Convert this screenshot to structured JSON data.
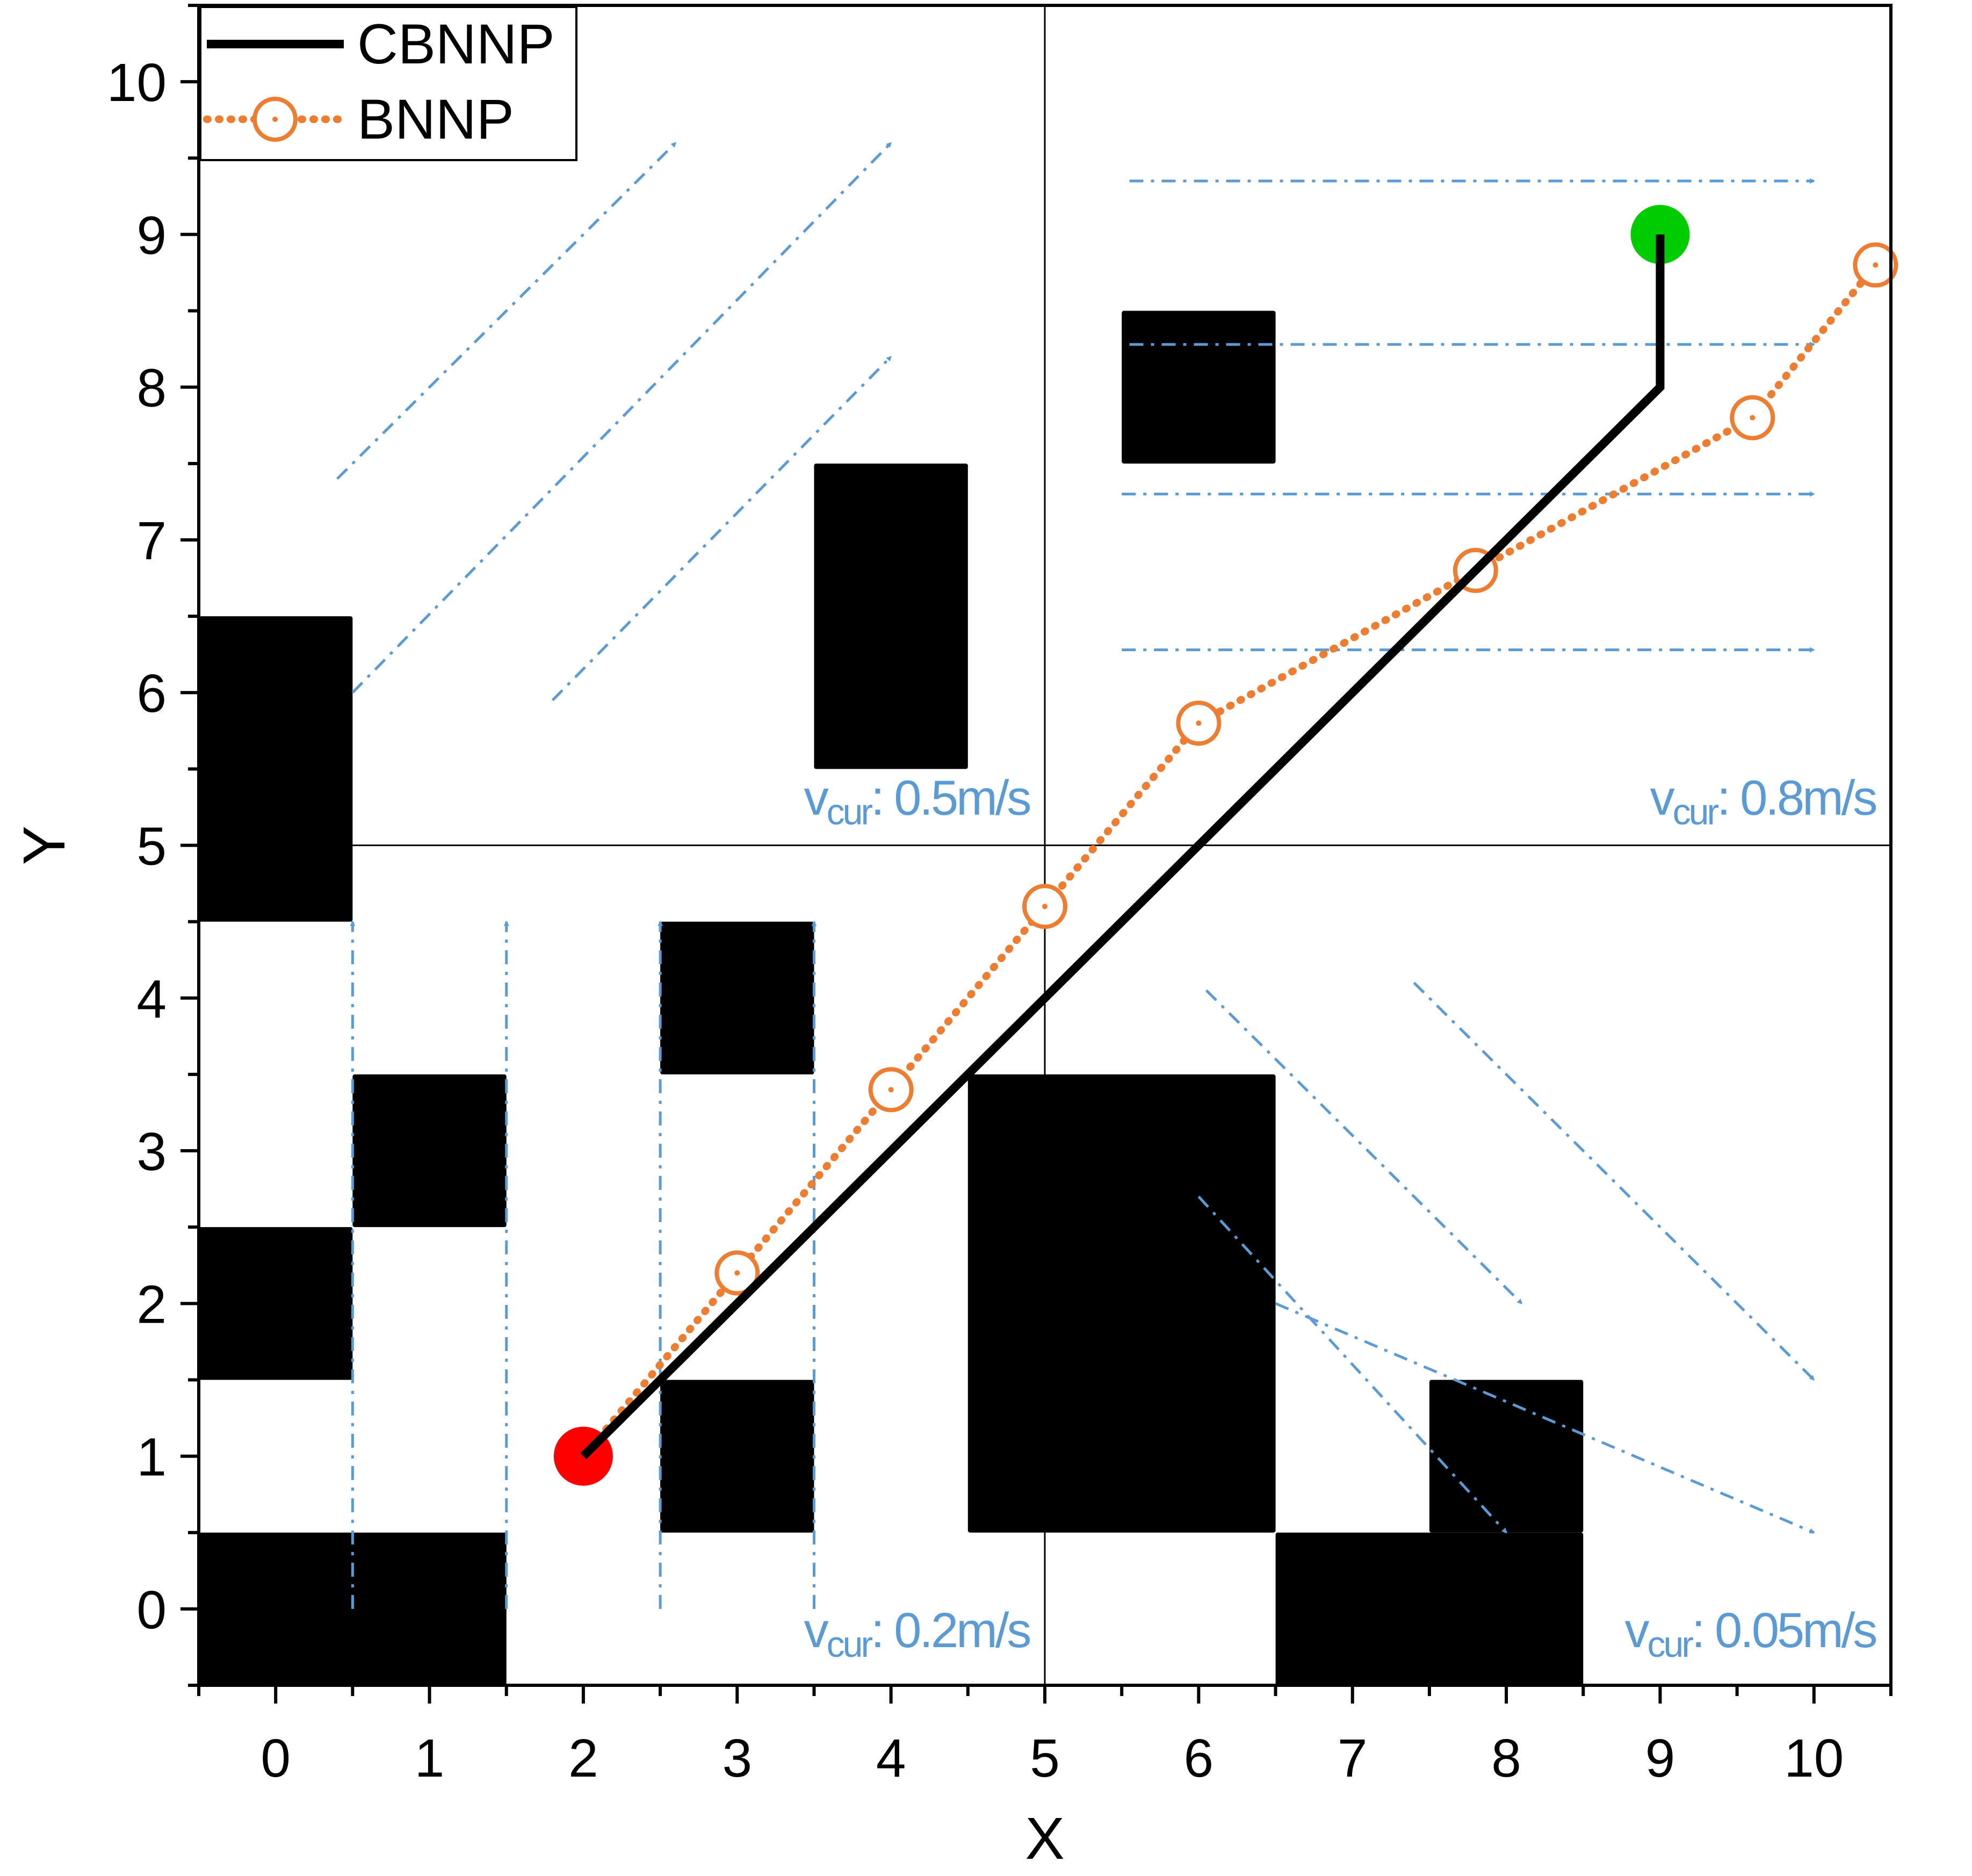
{
  "chart_data": {
    "type": "scatter",
    "xlabel": "X",
    "ylabel": "Y",
    "xlim": [
      -0.5,
      10.5
    ],
    "ylim": [
      -0.5,
      10.5
    ],
    "xticks": [
      "0",
      "1",
      "2",
      "3",
      "4",
      "5",
      "6",
      "7",
      "8",
      "9",
      "10"
    ],
    "yticks": [
      "0",
      "1",
      "2",
      "3",
      "4",
      "5",
      "6",
      "7",
      "8",
      "9",
      "10"
    ],
    "grid": false,
    "legend": {
      "position": "top-left",
      "entries": [
        "CBNNP",
        "BNNP"
      ]
    },
    "series": [
      {
        "name": "CBNNP",
        "style": "solid line",
        "color": "#000000",
        "points": [
          [
            2,
            1
          ],
          [
            9,
            8
          ],
          [
            9,
            9
          ]
        ]
      },
      {
        "name": "BNNP",
        "style": "dotted line with open circle markers",
        "color": "#ed7d31",
        "points": [
          [
            2,
            1
          ],
          [
            3,
            2.2
          ],
          [
            4,
            3.4
          ],
          [
            5,
            4.6
          ],
          [
            6,
            5.8
          ],
          [
            7.8,
            6.8
          ],
          [
            9.6,
            7.8
          ],
          [
            10.4,
            8.8
          ]
        ]
      }
    ],
    "start_point": {
      "x": 2,
      "y": 1,
      "color": "#ff0000"
    },
    "goal_point": {
      "x": 9,
      "y": 9,
      "color": "#00cc00"
    },
    "obstacles": [
      {
        "x1": -0.5,
        "y1": -0.5,
        "x2": 1.5,
        "y2": 0.5
      },
      {
        "x1": -0.5,
        "y1": 1.5,
        "x2": 0.5,
        "y2": 2.5
      },
      {
        "x1": 0.5,
        "y1": 2.5,
        "x2": 1.5,
        "y2": 3.5
      },
      {
        "x1": -0.5,
        "y1": 4.5,
        "x2": 0.5,
        "y2": 6.5
      },
      {
        "x1": 2.5,
        "y1": 0.5,
        "x2": 3.5,
        "y2": 1.5
      },
      {
        "x1": 2.5,
        "y1": 3.5,
        "x2": 3.5,
        "y2": 4.5
      },
      {
        "x1": 4.5,
        "y1": 0.5,
        "x2": 6.5,
        "y2": 3.5
      },
      {
        "x1": 6.5,
        "y1": -0.5,
        "x2": 8.5,
        "y2": 0.5
      },
      {
        "x1": 7.5,
        "y1": 0.5,
        "x2": 8.5,
        "y2": 1.5
      },
      {
        "x1": 3.5,
        "y1": 5.5,
        "x2": 4.5,
        "y2": 7.5
      },
      {
        "x1": 5.5,
        "y1": 7.5,
        "x2": 6.5,
        "y2": 8.5
      }
    ],
    "divider_lines": [
      {
        "x1": 5,
        "y1": -0.5,
        "x2": 5,
        "y2": 10.5
      },
      {
        "x1": -0.5,
        "y1": 5,
        "x2": 10.5,
        "y2": 5
      }
    ],
    "current_arrows": {
      "color": "#5b9bd5",
      "style": "dash-dot",
      "items": [
        {
          "x1": 0.5,
          "y1": 0,
          "x2": 0.5,
          "y2": 4.5
        },
        {
          "x1": 1.5,
          "y1": 0,
          "x2": 1.5,
          "y2": 4.5
        },
        {
          "x1": 2.5,
          "y1": 0,
          "x2": 2.5,
          "y2": 4.5
        },
        {
          "x1": 3.5,
          "y1": 0,
          "x2": 3.5,
          "y2": 4.5
        },
        {
          "x1": 0.4,
          "y1": 7.4,
          "x2": 2.6,
          "y2": 9.6
        },
        {
          "x1": 0.5,
          "y1": 6.0,
          "x2": 4.0,
          "y2": 9.6
        },
        {
          "x1": 1.8,
          "y1": 5.95,
          "x2": 4.0,
          "y2": 8.2
        },
        {
          "x1": 5.55,
          "y1": 9.35,
          "x2": 10.0,
          "y2": 9.35
        },
        {
          "x1": 5.55,
          "y1": 8.28,
          "x2": 10.0,
          "y2": 8.28
        },
        {
          "x1": 5.5,
          "y1": 7.3,
          "x2": 10.0,
          "y2": 7.3
        },
        {
          "x1": 5.5,
          "y1": 6.28,
          "x2": 10.0,
          "y2": 6.28
        },
        {
          "x1": 6.05,
          "y1": 4.05,
          "x2": 8.1,
          "y2": 2.0
        },
        {
          "x1": 7.4,
          "y1": 4.1,
          "x2": 10.0,
          "y2": 1.5
        },
        {
          "x1": 6.0,
          "y1": 2.7,
          "x2": 8.0,
          "y2": 0.5
        },
        {
          "x1": 6.5,
          "y1": 2.0,
          "x2": 10.0,
          "y2": 0.5
        }
      ]
    },
    "annotations": [
      {
        "text": "v",
        "sub": "cur",
        "value": ": 0.5m/s",
        "region": "top-left"
      },
      {
        "text": "v",
        "sub": "cur",
        "value": ": 0.8m/s",
        "region": "top-right"
      },
      {
        "text": "v",
        "sub": "cur",
        "value": ": 0.2m/s",
        "region": "bottom-left"
      },
      {
        "text": "v",
        "sub": "cur",
        "value": ": 0.05m/s",
        "region": "bottom-right"
      }
    ]
  }
}
